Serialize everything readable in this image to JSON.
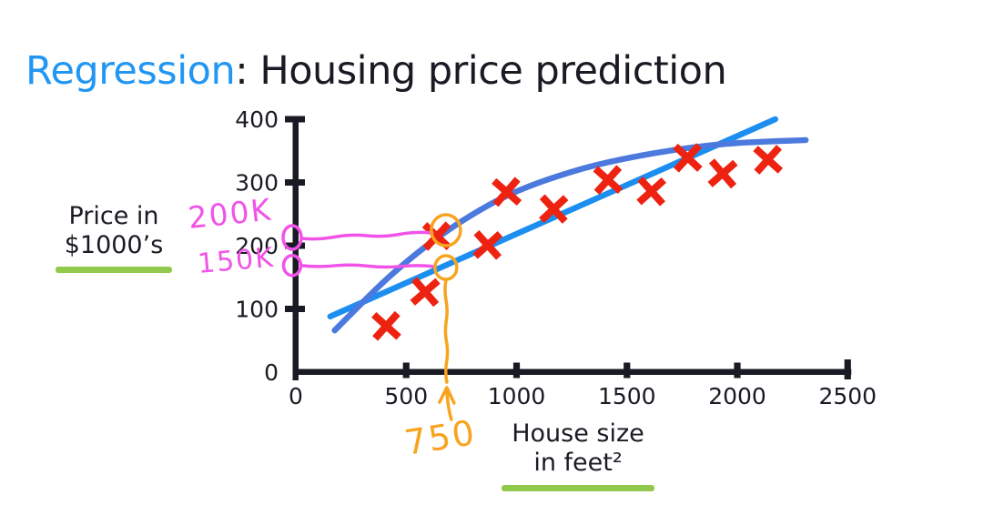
{
  "title": {
    "accent": "Regression",
    "rest": ": Housing price prediction"
  },
  "colors": {
    "accent_blue": "#2196f3",
    "line_blue": "#1b8ef0",
    "curve_blue": "#4b79dd",
    "marker_red": "#ee2211",
    "annotation_pink": "#f153e8",
    "annotation_orange": "#f8a41f",
    "underline_green": "#92c94d",
    "ink": "#1a1a24"
  },
  "chart_data": {
    "type": "scatter",
    "title": "Housing price prediction",
    "xlabel": "House size in feet²",
    "xlabel_line1": "House size",
    "xlabel_line2": "in feet²",
    "ylabel": "Price in $1000’s",
    "ylabel_line1": "Price in",
    "ylabel_line2": "$1000’s",
    "x_ticks": [
      0,
      500,
      1000,
      1500,
      2000,
      2500
    ],
    "y_ticks": [
      0,
      100,
      200,
      300,
      400
    ],
    "xlim": [
      0,
      2550
    ],
    "ylim": [
      0,
      410
    ],
    "grid": false,
    "legend": "none",
    "marker": {
      "glyph": "x",
      "color_key": "marker_red"
    },
    "points": [
      [
        410,
        73
      ],
      [
        586,
        127
      ],
      [
        639,
        215
      ],
      [
        869,
        201
      ],
      [
        955,
        285
      ],
      [
        1168,
        258
      ],
      [
        1414,
        304
      ],
      [
        1611,
        286
      ],
      [
        1775,
        339
      ],
      [
        1934,
        314
      ],
      [
        2139,
        336
      ]
    ],
    "series": [
      {
        "name": "straight-line-fit",
        "kind": "line",
        "color_key": "line_blue",
        "points": [
          [
            156,
            88
          ],
          [
            2172,
            400
          ]
        ]
      },
      {
        "name": "curved-fit",
        "kind": "curve",
        "color_key": "curve_blue",
        "points": [
          [
            176,
            66
          ],
          [
            430,
            153
          ],
          [
            684,
            223
          ],
          [
            963,
            280
          ],
          [
            1291,
            321
          ],
          [
            1619,
            346
          ],
          [
            1947,
            361
          ],
          [
            2310,
            367
          ]
        ]
      }
    ]
  },
  "annotations": {
    "x_query": {
      "label": "750",
      "value": 750
    },
    "price_upper": {
      "label": "200K",
      "value": 200
    },
    "price_lower": {
      "label": "150K",
      "value": 150
    }
  }
}
